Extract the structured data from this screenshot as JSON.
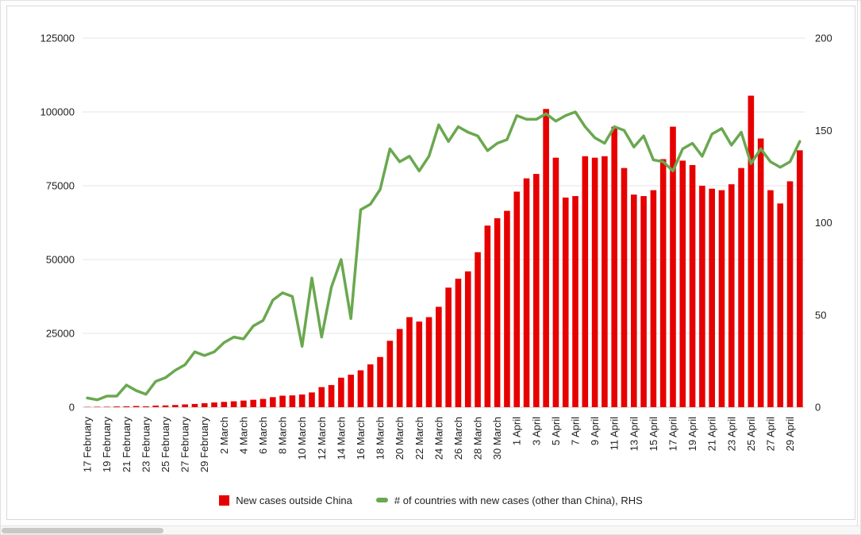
{
  "chart_data": {
    "type": "combo-bar-line",
    "categories": [
      "17 February",
      "18 February",
      "19 February",
      "20 February",
      "21 February",
      "22 February",
      "23 February",
      "24 February",
      "25 February",
      "26 February",
      "27 February",
      "28 February",
      "29 February",
      "1 March",
      "2 March",
      "3 March",
      "4 March",
      "5 March",
      "6 March",
      "7 March",
      "8 March",
      "9 March",
      "10 March",
      "11 March",
      "12 March",
      "13 March",
      "14 March",
      "15 March",
      "16 March",
      "17 March",
      "18 March",
      "19 March",
      "20 March",
      "21 March",
      "22 March",
      "23 March",
      "24 March",
      "25 March",
      "26 March",
      "27 March",
      "28 March",
      "29 March",
      "30 March",
      "31 March",
      "1 April",
      "2 April",
      "3 April",
      "4 April",
      "5 April",
      "6 April",
      "7 April",
      "8 April",
      "9 April",
      "10 April",
      "11 April",
      "12 April",
      "13 April",
      "14 April",
      "15 April",
      "16 April",
      "17 April",
      "18 April",
      "19 April",
      "20 April",
      "21 April",
      "22 April",
      "23 April",
      "24 April",
      "25 April",
      "26 April",
      "27 April",
      "28 April",
      "29 April",
      "30 April"
    ],
    "series": [
      {
        "name": "New cases outside China",
        "type": "bar",
        "axis": "left",
        "color": "#e60000",
        "values": [
          100,
          150,
          150,
          250,
          300,
          400,
          300,
          550,
          600,
          750,
          950,
          1100,
          1350,
          1600,
          1800,
          2000,
          2250,
          2500,
          2800,
          3400,
          3900,
          4000,
          4300,
          5000,
          6800,
          7500,
          10000,
          11000,
          12500,
          14500,
          17000,
          22500,
          26500,
          30500,
          29000,
          30500,
          34000,
          40500,
          43500,
          46000,
          52500,
          61500,
          64000,
          66500,
          73000,
          77500,
          79000,
          101000,
          84500,
          71000,
          71500,
          85000,
          84500,
          85000,
          95000,
          81000,
          72000,
          71500,
          73500,
          84000,
          95000,
          83500,
          82000,
          75000,
          74000,
          73500,
          75500,
          81000,
          105500,
          91000,
          73500,
          69000,
          76500,
          87000
        ]
      },
      {
        "name": "# of countries with new cases (other than China), RHS",
        "type": "line",
        "axis": "right",
        "color": "#6aa84f",
        "values": [
          5,
          4,
          6,
          6,
          12,
          9,
          7,
          14,
          16,
          20,
          23,
          30,
          28,
          30,
          35,
          38,
          37,
          44,
          47,
          58,
          62,
          60,
          33,
          70,
          38,
          65,
          80,
          48,
          107,
          110,
          118,
          140,
          133,
          136,
          128,
          136,
          153,
          144,
          152,
          149,
          147,
          139,
          143,
          145,
          158,
          156,
          156,
          159,
          155,
          158,
          160,
          152,
          146,
          143,
          152,
          150,
          141,
          147,
          134,
          133,
          128,
          140,
          143,
          136,
          148,
          151,
          142,
          149,
          132,
          140,
          133,
          130,
          133,
          144
        ]
      }
    ],
    "left_axis": {
      "min": 0,
      "max": 125000,
      "ticks": [
        0,
        25000,
        50000,
        75000,
        100000,
        125000
      ],
      "tick_labels": [
        "0",
        "25000",
        "50000",
        "75000",
        "100000",
        "125000"
      ]
    },
    "right_axis": {
      "min": 0,
      "max": 200,
      "ticks": [
        0,
        50,
        100,
        150,
        200
      ],
      "tick_labels": [
        "0",
        "50",
        "100",
        "150",
        "200"
      ]
    },
    "x_tick_every": 2,
    "grid": true,
    "legend_position": "bottom",
    "gridline_color": "#e6e6e6",
    "baseline_color": "#cfcfcf",
    "axis_text_color": "#1f1f1f"
  }
}
